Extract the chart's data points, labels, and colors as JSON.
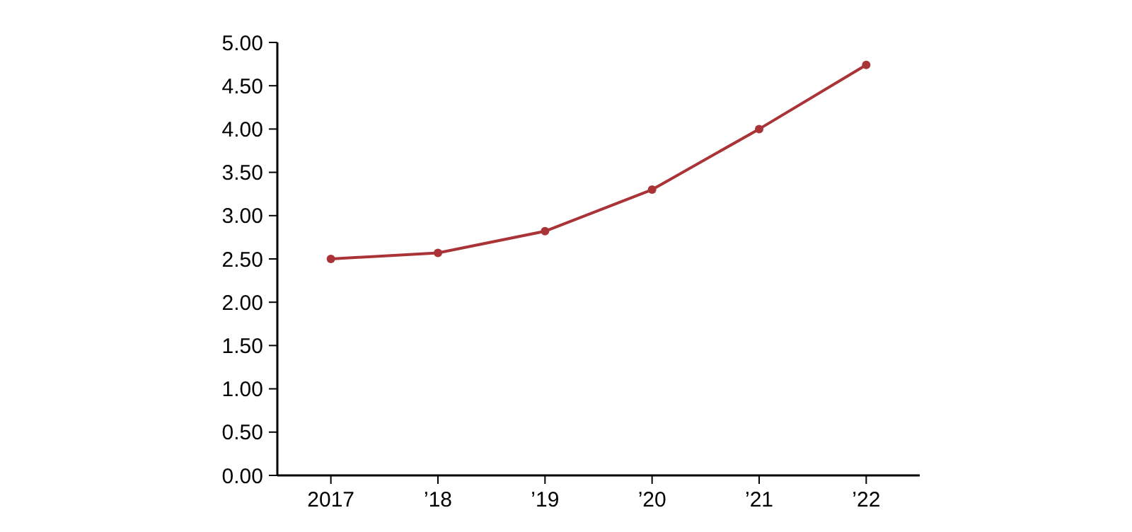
{
  "chart_data": {
    "type": "line",
    "categories": [
      "2017",
      "’18",
      "’19",
      "’20",
      "’21",
      "’22"
    ],
    "series": [
      {
        "color": "#a93337",
        "values": [
          2.5,
          2.57,
          2.82,
          3.3,
          4.0,
          4.74
        ]
      }
    ],
    "ylim": [
      0,
      5
    ],
    "yticks": [
      {
        "value": 0,
        "label": "0.00"
      },
      {
        "value": 0.5,
        "label": "0.50"
      },
      {
        "value": 1,
        "label": "1.00"
      },
      {
        "value": 1.5,
        "label": "1.50"
      },
      {
        "value": 2,
        "label": "2.00"
      },
      {
        "value": 2.5,
        "label": "2.50"
      },
      {
        "value": 3,
        "label": "3.00"
      },
      {
        "value": 3.5,
        "label": "3.50"
      },
      {
        "value": 4,
        "label": "4.00"
      },
      {
        "value": 4.5,
        "label": "4.50"
      },
      {
        "value": 5,
        "label": "5.00"
      }
    ],
    "marker": "circle",
    "line_style": "solid",
    "grid": false
  }
}
